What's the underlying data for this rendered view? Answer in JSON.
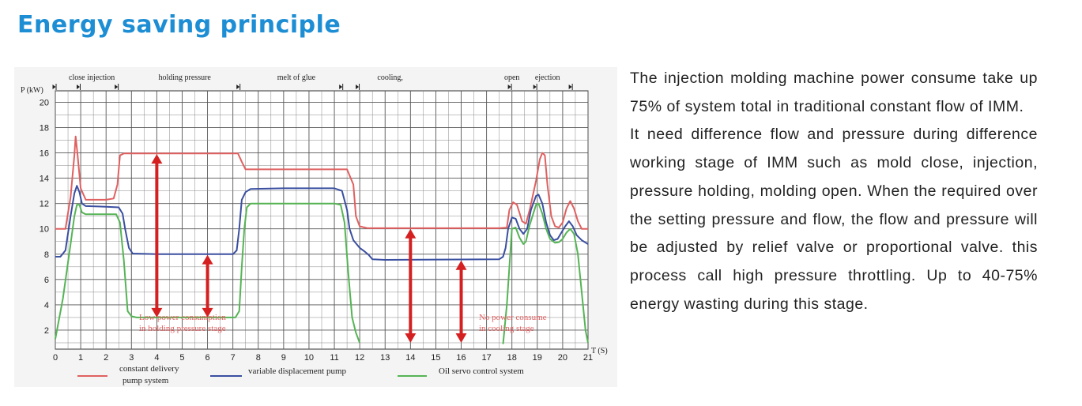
{
  "page": {
    "heading": "Energy saving principle",
    "paragraphs": [
      "The injection molding machine power consume take up 75% of system total in traditional constant flow of IMM.",
      "It need difference flow and pressure during difference working stage of IMM such as mold close, injection, pressure holding, molding open. When the required over the setting pressure and flow, the flow and pressure will be adjusted by relief valve or proportional valve. this process call high pressure throttling. Up to 40-75% energy wasting during this stage."
    ]
  },
  "chart_data": {
    "type": "line",
    "ylabel": "P (kW)",
    "xlabel": "T (S)",
    "xlim": [
      0,
      21
    ],
    "ylim": [
      0.5,
      20.9
    ],
    "x_ticks": [
      0,
      1,
      2,
      3,
      4,
      5,
      6,
      7,
      8,
      9,
      10,
      11,
      12,
      13,
      14,
      15,
      16,
      17,
      18,
      19,
      20,
      21
    ],
    "y_ticks": [
      2,
      4,
      6,
      8,
      10,
      12,
      14,
      16,
      18,
      20
    ],
    "grid": true,
    "stages": [
      {
        "label": "close",
        "x": 0.85
      },
      {
        "label": "injection",
        "x": 1.8
      },
      {
        "label": "holding pressure",
        "x": 5.1
      },
      {
        "label": "melt of glue",
        "x": 9.5
      },
      {
        "label": "cooling,",
        "x": 13.2
      },
      {
        "label": "open",
        "x": 18.0
      },
      {
        "label": "ejection",
        "x": 19.4
      }
    ],
    "stage_markers": [
      0.0,
      0.95,
      2.45,
      7.25,
      11.3,
      11.95,
      17.95,
      18.95,
      20.35
    ],
    "series": [
      {
        "name": "constant delivery pump system",
        "color": "#e06060",
        "points": [
          [
            0,
            10
          ],
          [
            0.4,
            10
          ],
          [
            0.6,
            12.5
          ],
          [
            0.75,
            15.8
          ],
          [
            0.8,
            17.3
          ],
          [
            0.87,
            16
          ],
          [
            1.0,
            13.2
          ],
          [
            1.2,
            12.3
          ],
          [
            2.0,
            12.3
          ],
          [
            2.3,
            12.4
          ],
          [
            2.45,
            13.5
          ],
          [
            2.55,
            15.8
          ],
          [
            2.7,
            15.95
          ],
          [
            3.5,
            15.95
          ],
          [
            7.2,
            15.95
          ],
          [
            7.35,
            15.3
          ],
          [
            7.5,
            14.7
          ],
          [
            9,
            14.7
          ],
          [
            11.5,
            14.7
          ],
          [
            11.75,
            13.5
          ],
          [
            11.85,
            11
          ],
          [
            12.0,
            10.2
          ],
          [
            12.3,
            10.05
          ],
          [
            17.5,
            10.05
          ],
          [
            17.8,
            10.1
          ],
          [
            17.9,
            11.5
          ],
          [
            18.05,
            12.1
          ],
          [
            18.2,
            11.9
          ],
          [
            18.4,
            10.6
          ],
          [
            18.55,
            10.4
          ],
          [
            18.7,
            11.5
          ],
          [
            18.95,
            13.8
          ],
          [
            19.1,
            15.5
          ],
          [
            19.2,
            16
          ],
          [
            19.3,
            15.8
          ],
          [
            19.4,
            13.5
          ],
          [
            19.55,
            11.0
          ],
          [
            19.7,
            10.2
          ],
          [
            19.85,
            10.1
          ],
          [
            20.0,
            10.5
          ],
          [
            20.15,
            11.6
          ],
          [
            20.3,
            12.2
          ],
          [
            20.45,
            11.6
          ],
          [
            20.6,
            10.6
          ],
          [
            20.75,
            10.0
          ],
          [
            21,
            10.0
          ]
        ]
      },
      {
        "name": "variable displacement pump",
        "color": "#3a4fa0",
        "points": [
          [
            0,
            7.8
          ],
          [
            0.2,
            7.8
          ],
          [
            0.4,
            8.3
          ],
          [
            0.6,
            11
          ],
          [
            0.75,
            12.8
          ],
          [
            0.85,
            13.4
          ],
          [
            0.95,
            12.9
          ],
          [
            1.05,
            12.0
          ],
          [
            1.2,
            11.8
          ],
          [
            2.0,
            11.75
          ],
          [
            2.5,
            11.7
          ],
          [
            2.65,
            11.2
          ],
          [
            2.75,
            10
          ],
          [
            2.9,
            8.5
          ],
          [
            3.05,
            8.05
          ],
          [
            4,
            8.0
          ],
          [
            7.0,
            8.0
          ],
          [
            7.15,
            8.3
          ],
          [
            7.25,
            10
          ],
          [
            7.35,
            12.3
          ],
          [
            7.5,
            12.9
          ],
          [
            7.7,
            13.15
          ],
          [
            9,
            13.2
          ],
          [
            11.0,
            13.2
          ],
          [
            11.3,
            13.0
          ],
          [
            11.5,
            11.5
          ],
          [
            11.6,
            10
          ],
          [
            11.75,
            9.1
          ],
          [
            12.0,
            8.5
          ],
          [
            12.2,
            8.2
          ],
          [
            12.35,
            7.95
          ],
          [
            12.5,
            7.6
          ],
          [
            13,
            7.55
          ],
          [
            17.5,
            7.6
          ],
          [
            17.65,
            7.8
          ],
          [
            17.75,
            8.5
          ],
          [
            17.85,
            10
          ],
          [
            18.0,
            10.9
          ],
          [
            18.15,
            10.8
          ],
          [
            18.3,
            10.0
          ],
          [
            18.45,
            9.6
          ],
          [
            18.6,
            10
          ],
          [
            18.75,
            11.5
          ],
          [
            18.95,
            12.6
          ],
          [
            19.05,
            12.7
          ],
          [
            19.2,
            12.0
          ],
          [
            19.35,
            10.5
          ],
          [
            19.5,
            9.5
          ],
          [
            19.65,
            9.1
          ],
          [
            19.8,
            9.2
          ],
          [
            19.95,
            9.7
          ],
          [
            20.1,
            10.2
          ],
          [
            20.25,
            10.6
          ],
          [
            20.4,
            10.2
          ],
          [
            20.55,
            9.5
          ],
          [
            20.75,
            9.1
          ],
          [
            21,
            8.8
          ]
        ]
      },
      {
        "name": "Oil servo control system",
        "color": "#55b455",
        "points": [
          [
            0,
            1.3
          ],
          [
            0.3,
            4.5
          ],
          [
            0.6,
            8.8
          ],
          [
            0.75,
            11.0
          ],
          [
            0.85,
            11.9
          ],
          [
            0.95,
            11.9
          ],
          [
            1.05,
            11.3
          ],
          [
            1.2,
            11.15
          ],
          [
            2.4,
            11.15
          ],
          [
            2.55,
            10.5
          ],
          [
            2.7,
            7.5
          ],
          [
            2.85,
            3.5
          ],
          [
            3.0,
            3.1
          ],
          [
            3.2,
            3.0
          ],
          [
            5,
            3.0
          ],
          [
            7.1,
            3.0
          ],
          [
            7.25,
            3.5
          ],
          [
            7.35,
            7
          ],
          [
            7.45,
            10
          ],
          [
            7.55,
            11.7
          ],
          [
            7.7,
            12.0
          ],
          [
            9,
            12.0
          ],
          [
            11.0,
            12.0
          ],
          [
            11.25,
            11.9
          ],
          [
            11.4,
            10.5
          ],
          [
            11.55,
            6.5
          ],
          [
            11.7,
            3.0
          ],
          [
            11.85,
            1.8
          ],
          [
            12.0,
            1.0
          ]
        ]
      },
      {
        "name": "Oil servo control system (open)",
        "color": "#55b455",
        "points": [
          [
            17.65,
            0.9
          ],
          [
            17.8,
            4
          ],
          [
            17.9,
            7
          ],
          [
            18.0,
            10.0
          ],
          [
            18.15,
            10.1
          ],
          [
            18.3,
            9.3
          ],
          [
            18.45,
            8.8
          ],
          [
            18.55,
            9.0
          ],
          [
            18.7,
            10.3
          ],
          [
            18.95,
            11.9
          ],
          [
            19.05,
            12.0
          ],
          [
            19.2,
            11.2
          ],
          [
            19.35,
            10
          ],
          [
            19.5,
            9.2
          ],
          [
            19.7,
            8.9
          ],
          [
            19.85,
            8.95
          ],
          [
            20.0,
            9.2
          ],
          [
            20.15,
            9.7
          ],
          [
            20.3,
            10.0
          ],
          [
            20.45,
            9.6
          ],
          [
            20.6,
            8.0
          ],
          [
            20.75,
            5.0
          ],
          [
            20.9,
            2.0
          ],
          [
            21,
            1.0
          ]
        ]
      }
    ],
    "arrows": [
      {
        "x": 4.0,
        "y_from": 3.0,
        "y_to": 15.9
      },
      {
        "x": 6.0,
        "y_from": 3.0,
        "y_to": 7.95
      },
      {
        "x": 14.0,
        "y_from": 1.0,
        "y_to": 10.0
      },
      {
        "x": 16.0,
        "y_from": 1.0,
        "y_to": 7.5
      }
    ],
    "annotations": [
      {
        "line1": "Low power consumption",
        "line2": "in holding pressure stage",
        "x": 3.3,
        "y": 2.3
      },
      {
        "line1": "No power consume",
        "line2": "in cooling stage",
        "x": 16.7,
        "y": 2.3
      }
    ],
    "legend": [
      {
        "line1": "constant delivery",
        "line2": "pump system",
        "color": "#e06060"
      },
      {
        "line1": "variable displacement pump",
        "line2": "",
        "color": "#3a4fa0"
      },
      {
        "line1": "Oil servo control system",
        "line2": "",
        "color": "#55b455"
      }
    ]
  }
}
